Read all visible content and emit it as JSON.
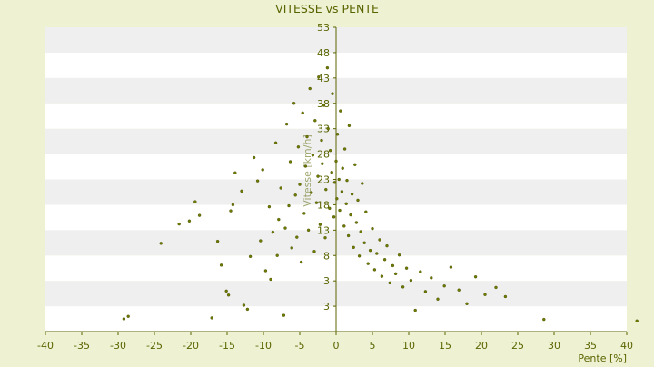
{
  "chart_data": {
    "type": "scatter",
    "title": "VITESSE vs PENTE",
    "xlabel": "Pente [%]",
    "ylabel": "Vitesse [km/h]",
    "xlim": [
      -40,
      40
    ],
    "ylim": [
      -7,
      53
    ],
    "x_ticks": [
      -40,
      -35,
      -30,
      -25,
      -20,
      -15,
      -10,
      -5,
      0,
      5,
      10,
      15,
      20,
      25,
      30,
      35,
      40
    ],
    "y_ticks": [
      -7,
      -2,
      3,
      8,
      13,
      18,
      23,
      28,
      33,
      38,
      43,
      48,
      53
    ],
    "y_tick_labels_visible": [
      "3",
      "3",
      "8",
      "13",
      "18",
      "23",
      "28",
      "33",
      "38",
      "43",
      "48",
      "53"
    ],
    "grid": "horizontal alternating bands",
    "colors": {
      "background": "#eef2d2",
      "plot_band_light": "#ffffff",
      "plot_band_dark": "#efefef",
      "axis": "#5c6400",
      "point": "#6f7a00",
      "title": "#5a6400"
    },
    "series": [
      {
        "points": [
          [
            -29.2,
            -4.5
          ],
          [
            -28.6,
            -4.0
          ],
          [
            -24.1,
            10.4
          ],
          [
            -21.6,
            14.2
          ],
          [
            -20.2,
            14.8
          ],
          [
            -19.4,
            18.6
          ],
          [
            -18.8,
            15.9
          ],
          [
            -17.1,
            -4.3
          ],
          [
            -16.3,
            10.8
          ],
          [
            -15.8,
            6.1
          ],
          [
            -15.1,
            1.0
          ],
          [
            -14.8,
            0.2
          ],
          [
            -14.5,
            16.8
          ],
          [
            -14.2,
            18.0
          ],
          [
            -13.9,
            24.3
          ],
          [
            -13.0,
            20.7
          ],
          [
            -12.7,
            -1.8
          ],
          [
            -12.2,
            -2.6
          ],
          [
            -11.8,
            7.8
          ],
          [
            -11.3,
            27.3
          ],
          [
            -10.8,
            22.7
          ],
          [
            -10.4,
            10.9
          ],
          [
            -10.1,
            24.9
          ],
          [
            -9.7,
            5.0
          ],
          [
            -9.2,
            17.6
          ],
          [
            -9.0,
            3.3
          ],
          [
            -8.7,
            12.6
          ],
          [
            -8.3,
            30.2
          ],
          [
            -8.1,
            8.0
          ],
          [
            -7.9,
            15.1
          ],
          [
            -7.6,
            21.3
          ],
          [
            -7.2,
            -3.8
          ],
          [
            -7.0,
            13.4
          ],
          [
            -6.8,
            33.9
          ],
          [
            -6.5,
            17.8
          ],
          [
            -6.3,
            26.5
          ],
          [
            -6.1,
            9.5
          ],
          [
            -5.8,
            38.0
          ],
          [
            -5.6,
            19.9
          ],
          [
            -5.4,
            11.6
          ],
          [
            -5.2,
            29.4
          ],
          [
            -5.0,
            22.0
          ],
          [
            -4.8,
            6.7
          ],
          [
            -4.6,
            36.1
          ],
          [
            -4.4,
            16.3
          ],
          [
            -4.2,
            25.6
          ],
          [
            -4.0,
            31.4
          ],
          [
            -3.8,
            13.0
          ],
          [
            -3.6,
            40.9
          ],
          [
            -3.4,
            20.4
          ],
          [
            -3.2,
            27.8
          ],
          [
            -3.0,
            8.8
          ],
          [
            -2.9,
            34.6
          ],
          [
            -2.7,
            18.4
          ],
          [
            -2.5,
            23.6
          ],
          [
            -2.4,
            43.2
          ],
          [
            -2.2,
            14.1
          ],
          [
            -2.0,
            30.7
          ],
          [
            -1.9,
            26.1
          ],
          [
            -1.7,
            37.6
          ],
          [
            -1.5,
            11.5
          ],
          [
            -1.4,
            21.0
          ],
          [
            -1.2,
            45.0
          ],
          [
            -1.1,
            33.0
          ],
          [
            -0.9,
            17.3
          ],
          [
            -0.8,
            28.7
          ],
          [
            -0.6,
            24.4
          ],
          [
            -0.5,
            39.9
          ],
          [
            -0.3,
            15.6
          ],
          [
            -0.2,
            22.4
          ],
          [
            0.0,
            26.6
          ],
          [
            0.1,
            19.2
          ],
          [
            0.2,
            31.9
          ],
          [
            0.4,
            23.0
          ],
          [
            0.5,
            16.9
          ],
          [
            0.6,
            36.5
          ],
          [
            0.8,
            20.6
          ],
          [
            0.9,
            25.2
          ],
          [
            1.1,
            13.8
          ],
          [
            1.2,
            29.0
          ],
          [
            1.4,
            18.2
          ],
          [
            1.5,
            22.8
          ],
          [
            1.7,
            11.9
          ],
          [
            1.8,
            33.6
          ],
          [
            2.0,
            16.0
          ],
          [
            2.2,
            20.1
          ],
          [
            2.4,
            9.6
          ],
          [
            2.6,
            25.9
          ],
          [
            2.8,
            14.5
          ],
          [
            3.0,
            18.9
          ],
          [
            3.2,
            7.9
          ],
          [
            3.4,
            12.7
          ],
          [
            3.6,
            22.2
          ],
          [
            3.9,
            10.5
          ],
          [
            4.1,
            16.6
          ],
          [
            4.4,
            6.4
          ],
          [
            4.7,
            9.0
          ],
          [
            5.0,
            13.3
          ],
          [
            5.3,
            5.2
          ],
          [
            5.6,
            8.4
          ],
          [
            6.0,
            11.1
          ],
          [
            6.3,
            3.9
          ],
          [
            6.7,
            7.2
          ],
          [
            7.0,
            9.9
          ],
          [
            7.4,
            2.6
          ],
          [
            7.8,
            6.0
          ],
          [
            8.2,
            4.4
          ],
          [
            8.7,
            8.1
          ],
          [
            9.2,
            1.8
          ],
          [
            9.7,
            5.5
          ],
          [
            10.3,
            3.1
          ],
          [
            10.9,
            -2.8
          ],
          [
            11.6,
            4.8
          ],
          [
            12.3,
            0.9
          ],
          [
            13.1,
            3.6
          ],
          [
            14.0,
            -0.6
          ],
          [
            14.9,
            2.0
          ],
          [
            15.8,
            5.7
          ],
          [
            16.9,
            1.2
          ],
          [
            18.0,
            -1.5
          ],
          [
            19.2,
            3.8
          ],
          [
            20.5,
            0.3
          ],
          [
            22.0,
            1.7
          ],
          [
            23.3,
            -0.1
          ],
          [
            28.6,
            -4.6
          ],
          [
            41.4,
            -4.9
          ]
        ]
      }
    ]
  }
}
